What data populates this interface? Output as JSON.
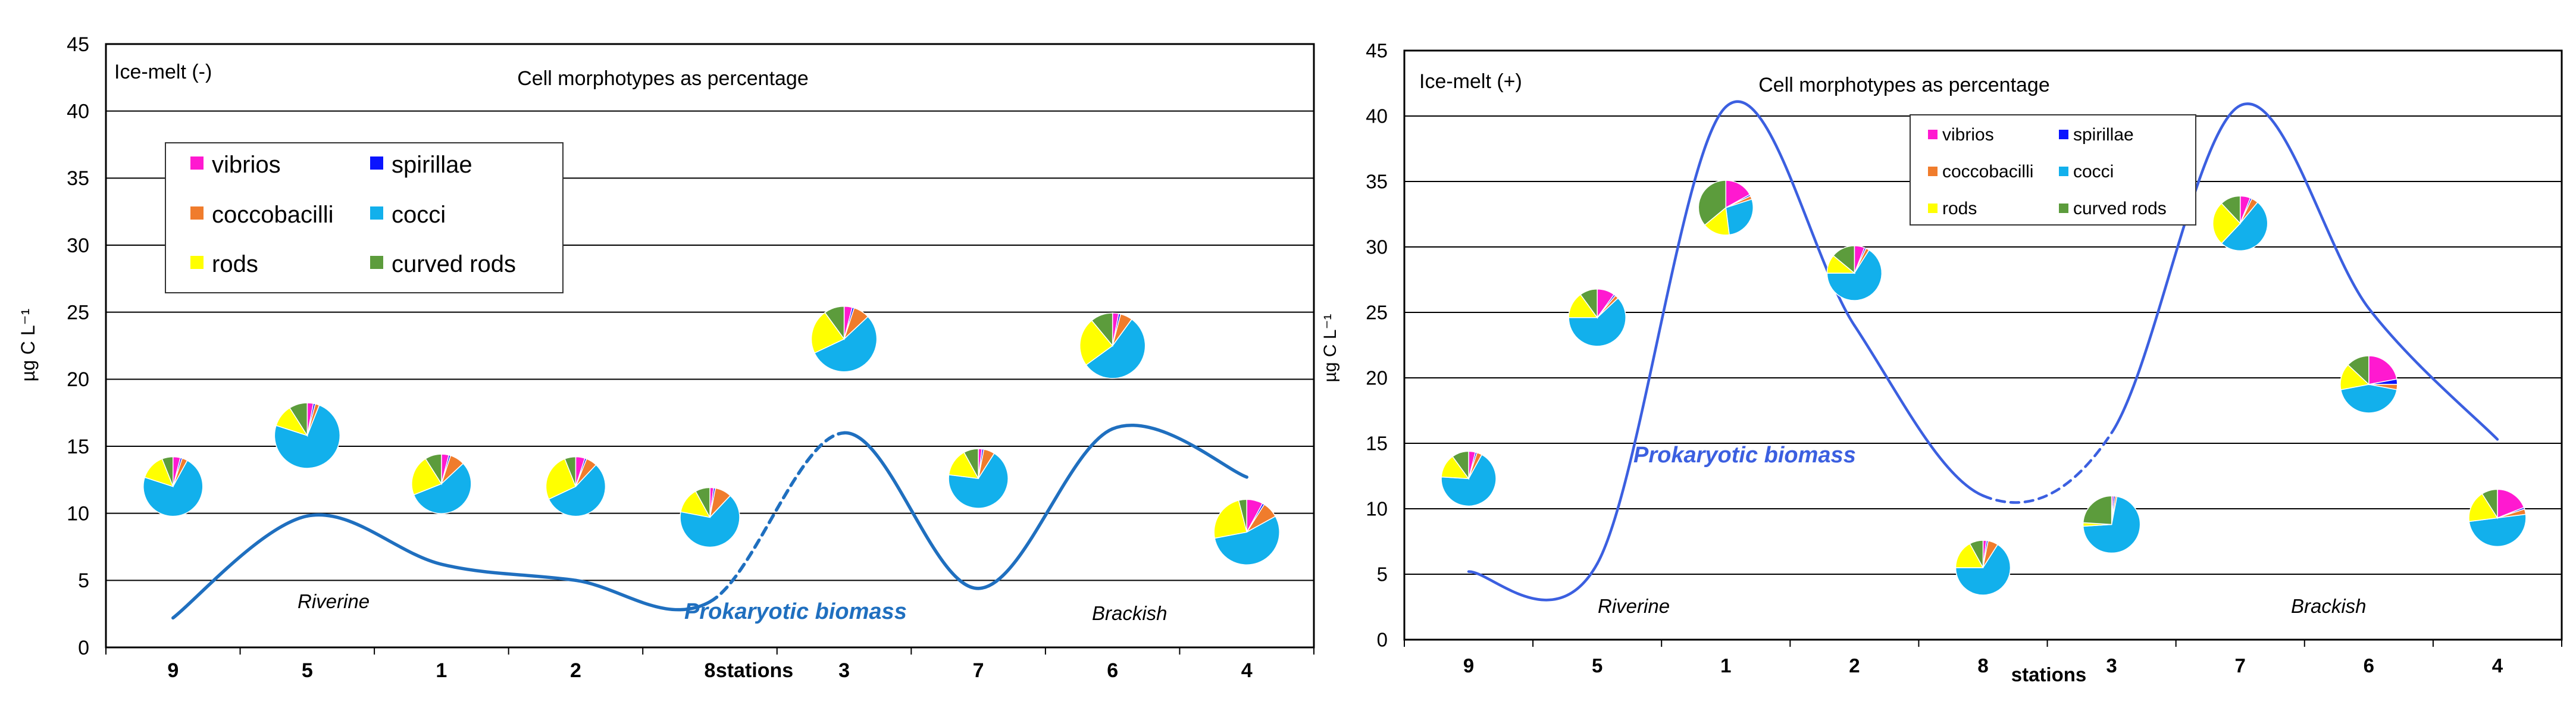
{
  "chart_data": [
    {
      "type": "line",
      "title": "Cell morphotypes as percentage",
      "panel_label": "Ice-melt (-)",
      "xlabel": "stations",
      "ylabel": "µg C L⁻¹",
      "ylim": [
        0,
        45
      ],
      "yticks": [
        0,
        5,
        10,
        15,
        20,
        25,
        30,
        35,
        40,
        45
      ],
      "grid": true,
      "categories": [
        "9",
        "5",
        "1",
        "2",
        "8",
        "3",
        "7",
        "6",
        "4"
      ],
      "series": [
        {
          "name": "Prokaryotic biomass",
          "color": "#1f6fbf",
          "values": [
            2.2,
            9.8,
            6.2,
            5.0,
            3.4,
            16.0,
            4.4,
            16.3,
            12.7
          ],
          "dashed_segment": [
            4,
            5
          ]
        }
      ],
      "annotations": [
        "Riverine",
        "Brackish"
      ],
      "legend": {
        "placement": "top-left",
        "items": [
          {
            "label": "vibrios",
            "color": "#ff19d0"
          },
          {
            "label": "spirillae",
            "color": "#0a14ff"
          },
          {
            "label": "coccobacilli",
            "color": "#f07c2c"
          },
          {
            "label": "cocci",
            "color": "#12b0ec"
          },
          {
            "label": "rods",
            "color": "#ffff00"
          },
          {
            "label": "curved rods",
            "color": "#5c9c3c"
          }
        ]
      },
      "pies": [
        {
          "station": "9",
          "y": 12.0,
          "values": [
            4,
            1,
            3,
            72,
            14,
            6
          ]
        },
        {
          "station": "5",
          "y": 15.8,
          "values": [
            3,
            1,
            2,
            74,
            11,
            9
          ]
        },
        {
          "station": "1",
          "y": 12.2,
          "values": [
            4,
            1,
            8,
            56,
            22,
            9
          ]
        },
        {
          "station": "2",
          "y": 12.0,
          "values": [
            5,
            1,
            6,
            56,
            26,
            6
          ]
        },
        {
          "station": "8",
          "y": 9.7,
          "values": [
            2,
            1,
            9,
            66,
            14,
            8
          ]
        },
        {
          "station": "3",
          "y": 23.0,
          "values": [
            4,
            1,
            8,
            55,
            22,
            10
          ]
        },
        {
          "station": "7",
          "y": 12.6,
          "values": [
            2,
            1,
            6,
            68,
            15,
            8
          ]
        },
        {
          "station": "6",
          "y": 22.5,
          "values": [
            3,
            1,
            6,
            55,
            24,
            11
          ]
        },
        {
          "station": "4",
          "y": 8.6,
          "values": [
            8,
            1,
            8,
            55,
            24,
            4
          ]
        }
      ]
    },
    {
      "type": "line",
      "title": "Cell morphotypes as percentage",
      "panel_label": "Ice-melt (+)",
      "xlabel": "stations",
      "ylabel": "µg C L⁻¹",
      "ylim": [
        0,
        45
      ],
      "yticks": [
        0,
        5,
        10,
        15,
        20,
        25,
        30,
        35,
        40,
        45
      ],
      "grid": true,
      "categories": [
        "9",
        "5",
        "1",
        "2",
        "8",
        "3",
        "7",
        "6",
        "4"
      ],
      "series": [
        {
          "name": "Prokaryotic biomass",
          "color": "#3b5fe0",
          "values": [
            5.2,
            5.8,
            40.7,
            24.0,
            11.0,
            15.8,
            40.8,
            25.3,
            15.3
          ],
          "dashed_segment": [
            4,
            5
          ]
        }
      ],
      "annotations": [
        "Riverine",
        "Brackish"
      ],
      "legend": {
        "placement": "top-center",
        "items": [
          {
            "label": "vibrios",
            "color": "#ff19d0"
          },
          {
            "label": "spirillae",
            "color": "#0a14ff"
          },
          {
            "label": "coccobacilli",
            "color": "#f07c2c"
          },
          {
            "label": "cocci",
            "color": "#12b0ec"
          },
          {
            "label": "rods",
            "color": "#ffff00"
          },
          {
            "label": "curved rods",
            "color": "#5c9c3c"
          }
        ]
      },
      "pies": [
        {
          "station": "9",
          "y": 12.3,
          "values": [
            4,
            1,
            3,
            68,
            14,
            10
          ]
        },
        {
          "station": "5",
          "y": 24.6,
          "values": [
            10,
            1,
            2,
            62,
            15,
            10
          ]
        },
        {
          "station": "1",
          "y": 33.0,
          "values": [
            17,
            1,
            2,
            28,
            16,
            36
          ]
        },
        {
          "station": "2",
          "y": 28.0,
          "values": [
            6,
            1,
            2,
            66,
            11,
            14
          ]
        },
        {
          "station": "8",
          "y": 5.5,
          "values": [
            2,
            1,
            6,
            66,
            17,
            8
          ]
        },
        {
          "station": "3",
          "y": 8.8,
          "values": [
            1,
            1,
            1,
            71,
            2,
            24
          ]
        },
        {
          "station": "7",
          "y": 31.8,
          "values": [
            6,
            1,
            4,
            51,
            26,
            12
          ]
        },
        {
          "station": "6",
          "y": 19.5,
          "values": [
            22,
            3,
            3,
            44,
            15,
            13
          ]
        },
        {
          "station": "4",
          "y": 9.3,
          "values": [
            19,
            1,
            3,
            50,
            18,
            9
          ]
        }
      ]
    }
  ]
}
